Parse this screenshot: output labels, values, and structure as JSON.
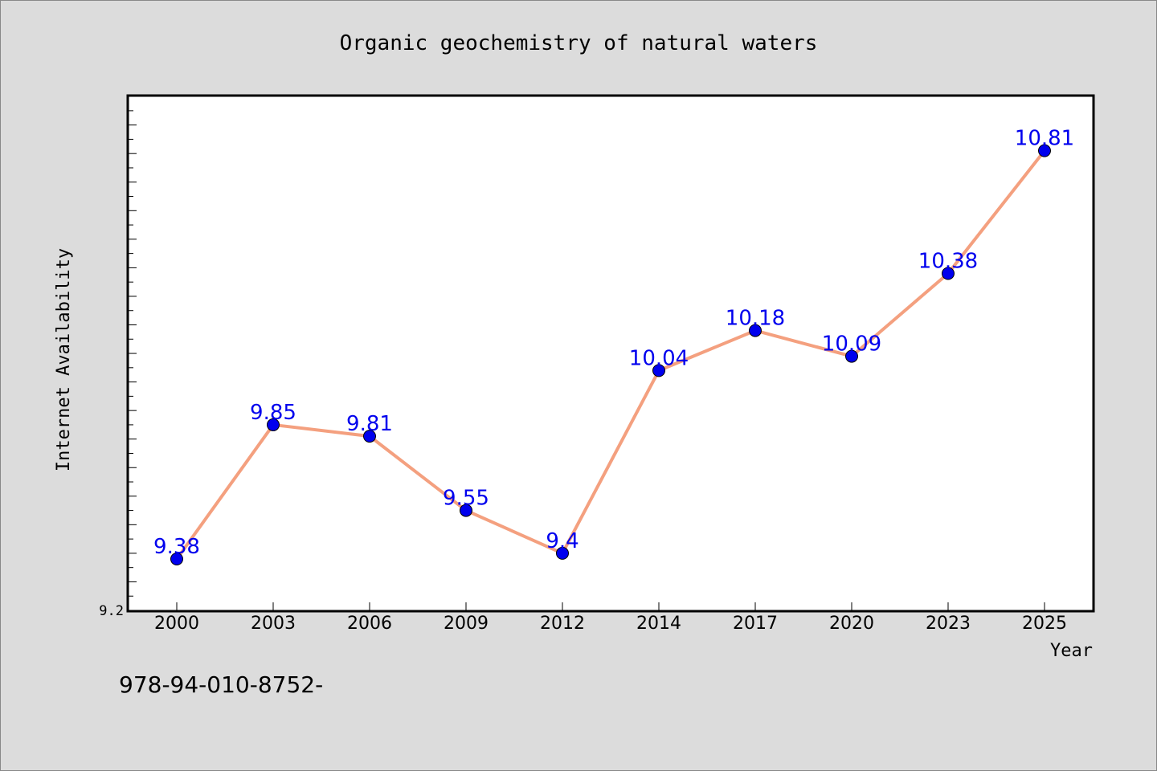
{
  "chart_data": {
    "type": "line",
    "title": "Organic geochemistry of natural waters",
    "xlabel": "Year",
    "ylabel": "Internet Availability",
    "x": [
      "2000",
      "2003",
      "2006",
      "2009",
      "2012",
      "2014",
      "2017",
      "2020",
      "2023",
      "2025"
    ],
    "series": [
      {
        "values": [
          9.38,
          9.85,
          9.81,
          9.55,
          9.4,
          10.04,
          10.18,
          10.09,
          10.38,
          10.81
        ],
        "data_labels": [
          "9.38",
          "9.85",
          "9.81",
          "9.55",
          "9.4",
          "10.04",
          "10.18",
          "10.09",
          "10.38",
          "10.81"
        ],
        "line_color": "#f4a07f",
        "marker_color": "#0000ee",
        "label_color": "#0000ee"
      }
    ],
    "y_tick_labels": [
      "9.2"
    ],
    "ylim": [
      9.2,
      11.0
    ],
    "grid": false,
    "legend": "none"
  },
  "annotation": "978-94-010-8752-",
  "colors": {
    "background": "#dcdcdc",
    "plot_background": "#ffffff",
    "axis": "#000000"
  }
}
